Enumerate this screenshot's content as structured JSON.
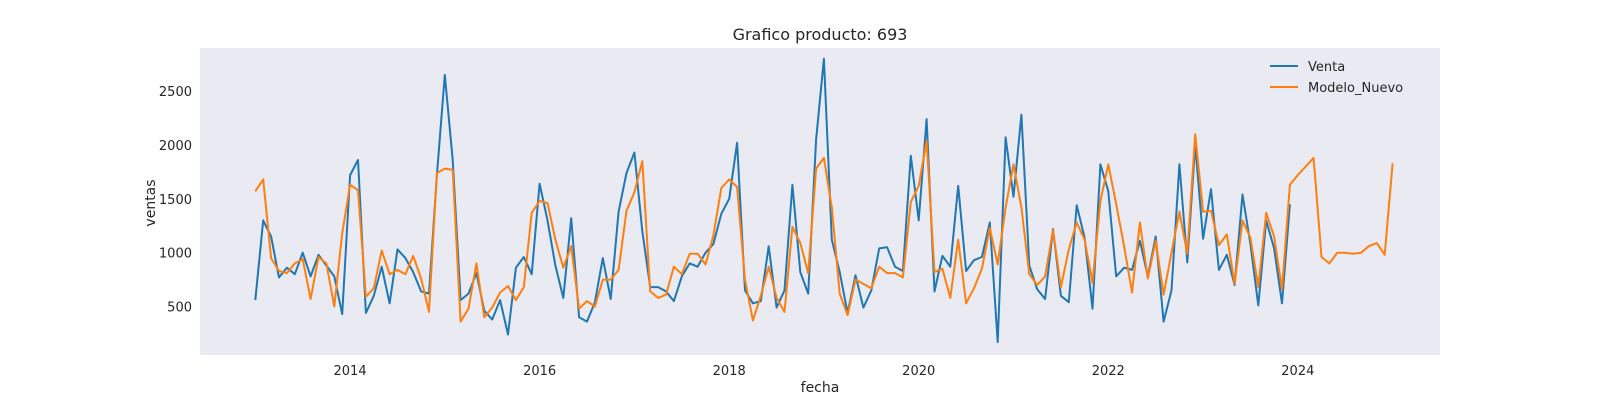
{
  "chart_data": {
    "type": "line",
    "title": "Grafico producto: 693",
    "xlabel": "fecha",
    "ylabel": "ventas",
    "x_start": "2013-01",
    "x_ticks": [
      "2014",
      "2016",
      "2018",
      "2020",
      "2022",
      "2024"
    ],
    "y_ticks": [
      500,
      1000,
      1500,
      2000,
      2500
    ],
    "xlim": [
      "2012-06",
      "2025-07"
    ],
    "ylim": [
      50,
      2900
    ],
    "grid": false,
    "legend_position": "top-right",
    "background_color": "#EAEAF2",
    "series": [
      {
        "name": "Venta",
        "color": "#1F77B4",
        "values": [
          560,
          1300,
          1150,
          770,
          860,
          800,
          1000,
          780,
          980,
          880,
          780,
          430,
          1720,
          1860,
          440,
          600,
          870,
          530,
          1030,
          950,
          820,
          640,
          620,
          1720,
          2650,
          1860,
          560,
          620,
          810,
          460,
          380,
          560,
          240,
          860,
          960,
          800,
          1640,
          1300,
          880,
          580,
          1320,
          400,
          360,
          540,
          950,
          570,
          1380,
          1740,
          1930,
          1200,
          680,
          680,
          640,
          550,
          780,
          900,
          870,
          1000,
          1080,
          1360,
          1500,
          2020,
          650,
          530,
          550,
          1060,
          490,
          650,
          1630,
          820,
          620,
          2050,
          2800,
          1120,
          820,
          440,
          790,
          490,
          650,
          1040,
          1050,
          870,
          830,
          1900,
          1300,
          2240,
          640,
          970,
          870,
          1620,
          830,
          930,
          960,
          1280,
          170,
          2070,
          1520,
          2280,
          880,
          660,
          570,
          1220,
          600,
          540,
          1440,
          1140,
          480,
          1820,
          1570,
          780,
          860,
          840,
          1110,
          780,
          1150,
          360,
          650,
          1820,
          910,
          2000,
          1130,
          1590,
          840,
          980,
          700,
          1540,
          1080,
          510,
          1300,
          1040,
          530,
          1450
        ],
        "points": 132
      },
      {
        "name": "Modelo_Nuevo",
        "color": "#FF7F0E",
        "values": [
          1570,
          1680,
          950,
          830,
          810,
          900,
          940,
          570,
          960,
          900,
          500,
          1180,
          1630,
          1580,
          590,
          670,
          1020,
          800,
          840,
          800,
          970,
          760,
          450,
          1740,
          1780,
          1770,
          360,
          480,
          900,
          400,
          490,
          630,
          690,
          560,
          680,
          1370,
          1480,
          1460,
          1120,
          860,
          1060,
          480,
          550,
          500,
          750,
          750,
          840,
          1390,
          1560,
          1850,
          640,
          580,
          610,
          870,
          800,
          990,
          990,
          890,
          1160,
          1600,
          1680,
          1610,
          750,
          370,
          600,
          870,
          580,
          450,
          1240,
          1090,
          810,
          1780,
          1880,
          1420,
          620,
          420,
          750,
          710,
          670,
          870,
          810,
          810,
          770,
          1470,
          1620,
          2040,
          820,
          850,
          580,
          1120,
          530,
          670,
          850,
          1230,
          890,
          1420,
          1820,
          1420,
          800,
          700,
          780,
          1210,
          680,
          1030,
          1280,
          1120,
          720,
          1480,
          1820,
          1450,
          1060,
          630,
          1280,
          760,
          1110,
          610,
          1000,
          1380,
          990,
          2100,
          1380,
          1390,
          1070,
          1170,
          710,
          1300,
          1140,
          680,
          1370,
          1150,
          660,
          1630,
          1720,
          1800,
          1880,
          960,
          900,
          1000,
          1000,
          990,
          1000,
          1060,
          1090,
          980,
          1830
        ]
      }
    ]
  }
}
